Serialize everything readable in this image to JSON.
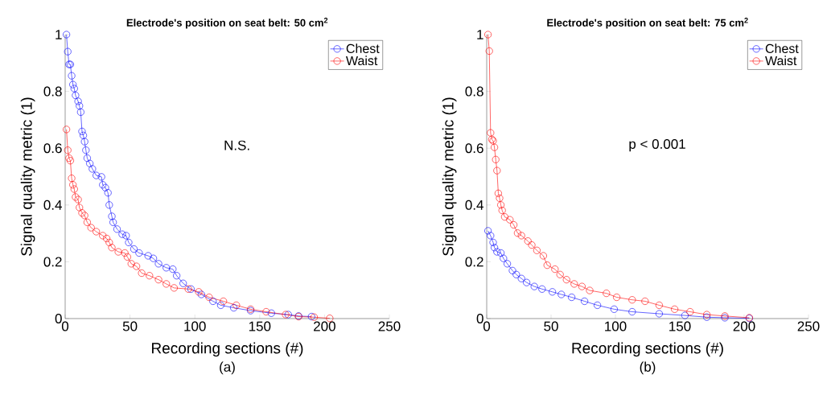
{
  "chart_data": [
    {
      "type": "line",
      "title": "Electrode's position on seat belt: 50 cm$^{2}$",
      "xlabel": "Recording sections (#)",
      "ylabel": "Signal quality metric (1)",
      "annotations": [
        "N.S.",
        "(a)"
      ],
      "xlim": [
        0,
        250
      ],
      "ylim": [
        0,
        1
      ],
      "xticks": [
        0,
        50,
        100,
        150,
        200,
        250
      ],
      "yticks": [
        0,
        0.2,
        0.4,
        0.6,
        0.8,
        1
      ],
      "grid": false,
      "legend": "top right",
      "marker": "circle",
      "line_style": "solid",
      "series": [
        {
          "name": "Chest",
          "color": "#0000ff",
          "x": [
            1,
            2,
            3,
            4,
            5,
            6,
            7,
            8,
            10,
            11,
            12,
            13,
            14,
            15,
            16,
            17,
            19,
            21,
            24,
            28,
            29,
            31,
            33,
            34,
            36,
            37,
            40,
            44,
            47,
            49,
            53,
            57,
            64,
            68,
            72,
            78,
            83,
            86,
            91,
            97,
            105,
            114,
            120,
            130,
            143,
            159,
            172,
            180,
            190
          ],
          "values": [
            1.0,
            0.94,
            0.895,
            0.895,
            0.855,
            0.824,
            0.81,
            0.786,
            0.765,
            0.749,
            0.727,
            0.659,
            0.645,
            0.623,
            0.593,
            0.565,
            0.546,
            0.527,
            0.504,
            0.499,
            0.471,
            0.461,
            0.443,
            0.4,
            0.36,
            0.339,
            0.315,
            0.297,
            0.292,
            0.268,
            0.245,
            0.231,
            0.221,
            0.212,
            0.193,
            0.179,
            0.174,
            0.151,
            0.124,
            0.104,
            0.085,
            0.061,
            0.047,
            0.038,
            0.028,
            0.019,
            0.014,
            0.009,
            0.007
          ]
        },
        {
          "name": "Waist",
          "color": "#ff0000",
          "x": [
            1,
            2,
            3,
            4,
            5,
            6,
            7,
            8,
            10,
            11,
            13,
            15,
            17,
            20,
            24,
            29,
            32,
            34,
            36,
            41,
            46,
            48,
            51,
            55,
            59,
            65,
            72,
            78,
            84,
            95,
            103,
            111,
            122,
            132,
            143,
            155,
            170,
            180,
            192,
            204
          ],
          "values": [
            0.666,
            0.593,
            0.565,
            0.556,
            0.494,
            0.471,
            0.456,
            0.428,
            0.419,
            0.391,
            0.372,
            0.363,
            0.339,
            0.32,
            0.306,
            0.292,
            0.282,
            0.268,
            0.25,
            0.235,
            0.231,
            0.217,
            0.193,
            0.184,
            0.16,
            0.151,
            0.137,
            0.122,
            0.108,
            0.104,
            0.094,
            0.075,
            0.061,
            0.047,
            0.033,
            0.024,
            0.014,
            0.007,
            0.005,
            0.001
          ]
        }
      ]
    },
    {
      "type": "line",
      "title": "Electrode's position on seat belt: 75 cm$^{2}$",
      "xlabel": "Recording sections (#)",
      "ylabel": "Signal quality metric (1)",
      "annotations": [
        "p < 0.001",
        "(b)"
      ],
      "xlim": [
        0,
        250
      ],
      "ylim": [
        0,
        1
      ],
      "xticks": [
        0,
        50,
        100,
        150,
        200,
        250
      ],
      "yticks": [
        0,
        0.2,
        0.4,
        0.6,
        0.8,
        1
      ],
      "grid": false,
      "legend": "top right",
      "marker": "circle",
      "line_style": "solid",
      "series": [
        {
          "name": "Chest",
          "color": "#0000ff",
          "x": [
            1,
            3,
            5,
            6,
            8,
            11,
            13,
            16,
            20,
            23,
            27,
            31,
            37,
            43,
            51,
            58,
            66,
            76,
            86,
            99,
            113,
            134,
            154,
            171,
            185,
            204
          ],
          "values": [
            0.309,
            0.292,
            0.268,
            0.25,
            0.235,
            0.231,
            0.212,
            0.193,
            0.169,
            0.155,
            0.141,
            0.127,
            0.113,
            0.104,
            0.094,
            0.085,
            0.075,
            0.061,
            0.047,
            0.033,
            0.024,
            0.017,
            0.011,
            0.005,
            0.003,
            0.001
          ]
        },
        {
          "name": "Waist",
          "color": "#ff0000",
          "x": [
            1,
            2,
            3,
            4,
            5,
            6,
            7,
            8,
            9,
            10,
            11,
            12,
            14,
            18,
            21,
            24,
            27,
            32,
            35,
            39,
            44,
            47,
            53,
            57,
            62,
            68,
            74,
            80,
            93,
            101,
            113,
            123,
            134,
            146,
            158,
            171,
            185,
            204
          ],
          "values": [
            1.0,
            0.942,
            0.654,
            0.631,
            0.626,
            0.603,
            0.56,
            0.521,
            0.441,
            0.424,
            0.4,
            0.381,
            0.358,
            0.348,
            0.33,
            0.301,
            0.292,
            0.273,
            0.259,
            0.24,
            0.221,
            0.188,
            0.174,
            0.155,
            0.137,
            0.122,
            0.113,
            0.099,
            0.089,
            0.075,
            0.066,
            0.061,
            0.047,
            0.033,
            0.024,
            0.014,
            0.009,
            0.003
          ]
        }
      ]
    }
  ]
}
